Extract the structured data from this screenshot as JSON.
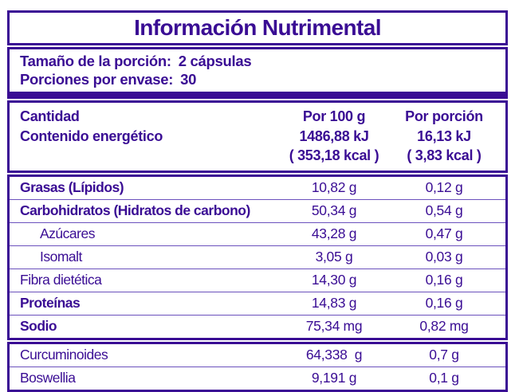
{
  "colors": {
    "purple": "#3A0D94",
    "thin_divider": "#6B51BD",
    "background": "#FFFFFF"
  },
  "label": {
    "title": "Información Nutrimental",
    "serving": {
      "serving_size_label": "Tamaño de la porción:",
      "serving_size_value": "2 cápsulas",
      "servings_per_container_label": "Porciones por envase:",
      "servings_per_container_value": "30"
    },
    "header": {
      "amount_label": "Cantidad",
      "energy_label": "Contenido energético",
      "per_100g_title": "Por 100 g",
      "per_100g_kj": "1486,88 kJ",
      "per_100g_kcal": "( 353,18 kcal )",
      "per_portion_title": "Por porción",
      "per_portion_kj": "16,13 kJ",
      "per_portion_kcal": "( 3,83 kcal )"
    },
    "rows": [
      {
        "label": "Grasas (Lípidos)",
        "per_100g": "10,82 g",
        "per_portion": "0,12 g",
        "emphasis": "bold",
        "indent": false
      },
      {
        "label": "Carbohidratos (Hidratos de carbono)",
        "per_100g": "50,34 g",
        "per_portion": "0,54 g",
        "emphasis": "bold",
        "indent": false
      },
      {
        "label": "Azúcares",
        "per_100g": "43,28 g",
        "per_portion": "0,47 g",
        "emphasis": "regular",
        "indent": true
      },
      {
        "label": "Isomalt",
        "per_100g": "3,05 g",
        "per_portion": "0,03 g",
        "emphasis": "regular",
        "indent": true
      },
      {
        "label": "Fibra dietética",
        "per_100g": "14,30 g",
        "per_portion": "0,16 g",
        "emphasis": "regular",
        "indent": false
      },
      {
        "label": "Proteínas",
        "per_100g": "14,83 g",
        "per_portion": "0,16 g",
        "emphasis": "bold",
        "indent": false
      },
      {
        "label": "Sodio",
        "per_100g": "75,34 mg",
        "per_portion": "0,82 mg",
        "emphasis": "bold",
        "indent": false
      }
    ],
    "extra_rows": [
      {
        "label": "Curcuminoides",
        "per_100g": "64,338  g",
        "per_portion": "0,7 g",
        "emphasis": "regular",
        "indent": false
      },
      {
        "label": "Boswellia",
        "per_100g": "9,191 g",
        "per_portion": "0,1 g",
        "emphasis": "regular",
        "indent": false
      }
    ]
  }
}
